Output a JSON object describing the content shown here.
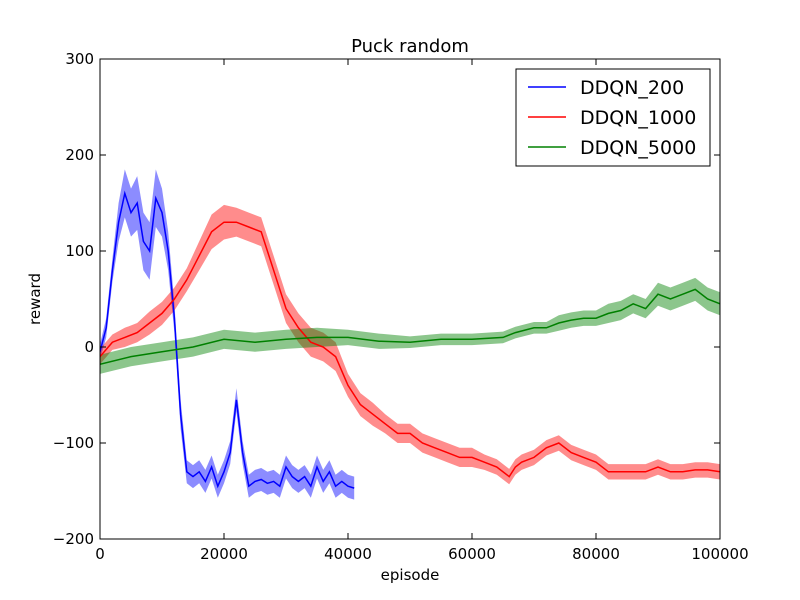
{
  "chart_data": {
    "type": "line",
    "title": "Puck random",
    "xlabel": "episode",
    "ylabel": "reward",
    "xlim": [
      0,
      100000
    ],
    "ylim": [
      -200,
      300
    ],
    "xticks": [
      0,
      20000,
      40000,
      60000,
      80000,
      100000
    ],
    "yticks": [
      -200,
      -100,
      0,
      100,
      200,
      300
    ],
    "xtick_labels": [
      "0",
      "20000",
      "40000",
      "60000",
      "80000",
      "100000"
    ],
    "ytick_labels": [
      "−200",
      "−100",
      "0",
      "100",
      "200",
      "300"
    ],
    "grid": false,
    "legend_position": "top-right",
    "series": [
      {
        "name": "DDQN_200",
        "color": "#0000ff",
        "band_color": "#0000ff",
        "x": [
          0,
          1000,
          2000,
          3000,
          4000,
          5000,
          6000,
          7000,
          8000,
          9000,
          10000,
          11000,
          12000,
          13000,
          14000,
          15000,
          16000,
          17000,
          18000,
          19000,
          20000,
          21000,
          22000,
          23000,
          24000,
          25000,
          26000,
          27000,
          28000,
          29000,
          30000,
          31000,
          32000,
          33000,
          34000,
          35000,
          36000,
          37000,
          38000,
          39000,
          40000,
          41000
        ],
        "y": [
          -5,
          20,
          80,
          130,
          160,
          140,
          150,
          110,
          100,
          155,
          140,
          100,
          30,
          -70,
          -130,
          -135,
          -130,
          -140,
          -125,
          -145,
          -130,
          -110,
          -55,
          -110,
          -145,
          -140,
          -138,
          -142,
          -140,
          -145,
          -125,
          -135,
          -140,
          -135,
          -145,
          -125,
          -140,
          -130,
          -145,
          -140,
          -145,
          -147
        ],
        "band": [
          8,
          10,
          12,
          20,
          25,
          25,
          28,
          30,
          30,
          30,
          25,
          20,
          15,
          15,
          12,
          12,
          12,
          12,
          12,
          12,
          12,
          12,
          12,
          12,
          12,
          12,
          12,
          12,
          12,
          12,
          12,
          12,
          12,
          12,
          12,
          12,
          12,
          12,
          12,
          12,
          12,
          12
        ]
      },
      {
        "name": "DDQN_1000",
        "color": "#ff0000",
        "band_color": "#ff0000",
        "x": [
          0,
          2000,
          4000,
          6000,
          8000,
          10000,
          12000,
          14000,
          16000,
          18000,
          20000,
          22000,
          24000,
          26000,
          28000,
          30000,
          32000,
          34000,
          36000,
          38000,
          40000,
          42000,
          44000,
          46000,
          48000,
          50000,
          52000,
          54000,
          56000,
          58000,
          60000,
          62000,
          64000,
          66000,
          67000,
          68000,
          70000,
          72000,
          74000,
          76000,
          78000,
          80000,
          82000,
          84000,
          86000,
          88000,
          90000,
          92000,
          94000,
          96000,
          98000,
          100000
        ],
        "y": [
          -10,
          5,
          10,
          15,
          25,
          35,
          50,
          70,
          95,
          120,
          130,
          130,
          125,
          120,
          80,
          40,
          20,
          5,
          0,
          -10,
          -40,
          -60,
          -70,
          -80,
          -90,
          -90,
          -100,
          -105,
          -110,
          -115,
          -115,
          -120,
          -125,
          -135,
          -125,
          -120,
          -115,
          -105,
          -100,
          -110,
          -115,
          -120,
          -130,
          -130,
          -130,
          -130,
          -125,
          -130,
          -130,
          -128,
          -128,
          -130
        ],
        "band": [
          8,
          8,
          10,
          10,
          12,
          12,
          12,
          12,
          15,
          18,
          18,
          15,
          15,
          15,
          15,
          15,
          15,
          15,
          15,
          15,
          12,
          12,
          12,
          10,
          10,
          10,
          10,
          10,
          10,
          10,
          10,
          8,
          8,
          8,
          8,
          8,
          8,
          8,
          8,
          8,
          8,
          8,
          8,
          8,
          8,
          8,
          8,
          8,
          8,
          8,
          8,
          8
        ]
      },
      {
        "name": "DDQN_5000",
        "color": "#008000",
        "band_color": "#008000",
        "x": [
          0,
          5000,
          10000,
          15000,
          20000,
          25000,
          30000,
          35000,
          40000,
          45000,
          50000,
          55000,
          60000,
          65000,
          67000,
          70000,
          72000,
          74000,
          76000,
          78000,
          80000,
          82000,
          84000,
          86000,
          88000,
          90000,
          92000,
          94000,
          96000,
          98000,
          100000
        ],
        "y": [
          -18,
          -10,
          -5,
          0,
          8,
          5,
          8,
          10,
          10,
          6,
          5,
          8,
          8,
          10,
          15,
          20,
          20,
          25,
          28,
          30,
          30,
          35,
          38,
          45,
          40,
          55,
          50,
          55,
          60,
          50,
          45
        ],
        "band": [
          10,
          10,
          10,
          10,
          10,
          10,
          10,
          10,
          8,
          8,
          6,
          6,
          6,
          6,
          6,
          6,
          6,
          8,
          8,
          8,
          8,
          10,
          10,
          10,
          10,
          12,
          12,
          12,
          12,
          12,
          12
        ]
      }
    ]
  }
}
